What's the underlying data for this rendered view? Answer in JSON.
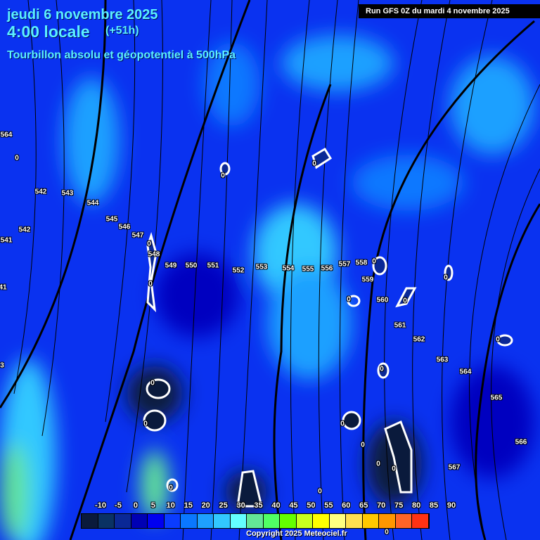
{
  "header": {
    "date": "jeudi 6 novembre 2025",
    "time": "4:00 locale",
    "lead": "(+51h)",
    "parameter": "Tourbillon absolu et géopotentiel à 500hPa",
    "run": "Run GFS 0Z du mardi 4 novembre 2025"
  },
  "contour_labels": [
    "542",
    "543",
    "544",
    "545",
    "546",
    "547",
    "548",
    "549",
    "550",
    "551",
    "552",
    "553",
    "554",
    "555",
    "556",
    "557",
    "558",
    "559",
    "560",
    "561",
    "562",
    "563",
    "564",
    "565",
    "566",
    "567",
    "564",
    "542",
    "541",
    "41",
    "3"
  ],
  "vorticity_zero_labels": [
    "0",
    "0",
    "0",
    "0",
    "0",
    "0",
    "0",
    "0",
    "0",
    "0",
    "0",
    "0",
    "0",
    "0",
    "0",
    "0",
    "0",
    "0",
    "0",
    "0"
  ],
  "colorbar": {
    "ticks": [
      "-10",
      "-5",
      "0",
      "5",
      "10",
      "15",
      "20",
      "25",
      "30",
      "35",
      "40",
      "45",
      "50",
      "55",
      "60",
      "65",
      "70",
      "75",
      "80",
      "85",
      "90"
    ],
    "colors": [
      "#0a1a3c",
      "#0a3264",
      "#0a2896",
      "#0000b4",
      "#0000f0",
      "#0a3cff",
      "#0a78ff",
      "#1ea0ff",
      "#32c8ff",
      "#64ffff",
      "#64e696",
      "#50ff64",
      "#64ff00",
      "#c8ff1e",
      "#ffff00",
      "#ffff80",
      "#ffe050",
      "#ffc800",
      "#ff9600",
      "#ff6428",
      "#ff3214"
    ]
  },
  "copyright": "Copyright 2025 Meteociel.fr"
}
